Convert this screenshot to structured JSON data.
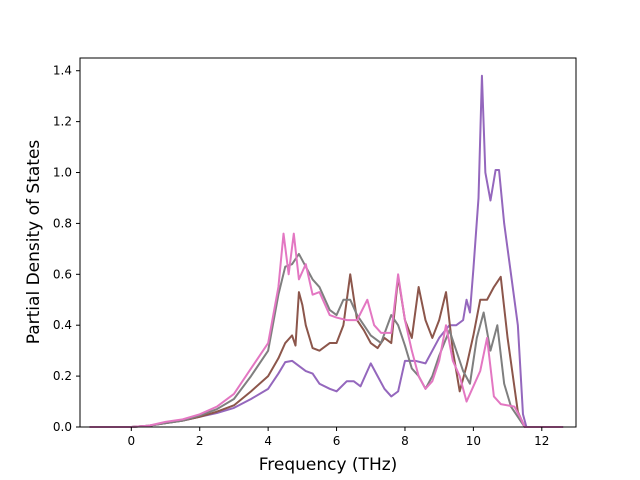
{
  "chart_data": {
    "type": "line",
    "title": "",
    "xlabel": "Frequency (THz)",
    "ylabel": "Partial Density of States",
    "xlim": [
      -1.5,
      13.0
    ],
    "ylim": [
      0.0,
      1.45
    ],
    "xticks": [
      0,
      2,
      4,
      6,
      8,
      10,
      12
    ],
    "yticks": [
      0.0,
      0.2,
      0.4,
      0.6,
      0.8,
      1.0,
      1.2,
      1.4
    ],
    "xtick_labels": [
      "0",
      "2",
      "4",
      "6",
      "8",
      "10",
      "12"
    ],
    "ytick_labels": [
      "0.0",
      "0.2",
      "0.4",
      "0.6",
      "0.8",
      "1.0",
      "1.2",
      "1.4"
    ],
    "grid": false,
    "legend": "none",
    "series": [
      {
        "color": "#9467bd",
        "points": [
          [
            -1.2,
            0
          ],
          [
            0,
            0
          ],
          [
            0.5,
            0.005
          ],
          [
            1,
            0.015
          ],
          [
            1.5,
            0.025
          ],
          [
            2,
            0.04
          ],
          [
            2.5,
            0.055
          ],
          [
            3,
            0.075
          ],
          [
            3.5,
            0.11
          ],
          [
            4,
            0.15
          ],
          [
            4.3,
            0.21
          ],
          [
            4.5,
            0.255
          ],
          [
            4.7,
            0.26
          ],
          [
            4.9,
            0.24
          ],
          [
            5.1,
            0.22
          ],
          [
            5.3,
            0.21
          ],
          [
            5.5,
            0.17
          ],
          [
            5.8,
            0.15
          ],
          [
            6.0,
            0.14
          ],
          [
            6.3,
            0.18
          ],
          [
            6.5,
            0.18
          ],
          [
            6.7,
            0.16
          ],
          [
            7.0,
            0.25
          ],
          [
            7.2,
            0.2
          ],
          [
            7.4,
            0.15
          ],
          [
            7.6,
            0.12
          ],
          [
            7.8,
            0.14
          ],
          [
            8.0,
            0.26
          ],
          [
            8.3,
            0.26
          ],
          [
            8.6,
            0.25
          ],
          [
            9.0,
            0.35
          ],
          [
            9.3,
            0.4
          ],
          [
            9.5,
            0.4
          ],
          [
            9.7,
            0.42
          ],
          [
            9.8,
            0.5
          ],
          [
            9.9,
            0.45
          ],
          [
            10.0,
            0.62
          ],
          [
            10.15,
            0.9
          ],
          [
            10.25,
            1.38
          ],
          [
            10.35,
            1.0
          ],
          [
            10.5,
            0.89
          ],
          [
            10.65,
            1.01
          ],
          [
            10.75,
            1.01
          ],
          [
            10.9,
            0.8
          ],
          [
            11.1,
            0.6
          ],
          [
            11.3,
            0.4
          ],
          [
            11.45,
            0.05
          ],
          [
            11.55,
            0
          ],
          [
            12.6,
            0
          ]
        ]
      },
      {
        "color": "#8c564b",
        "points": [
          [
            -1.2,
            0
          ],
          [
            0,
            0
          ],
          [
            0.5,
            0.005
          ],
          [
            1,
            0.015
          ],
          [
            1.5,
            0.025
          ],
          [
            2,
            0.04
          ],
          [
            2.5,
            0.06
          ],
          [
            3,
            0.085
          ],
          [
            3.5,
            0.14
          ],
          [
            4,
            0.2
          ],
          [
            4.3,
            0.27
          ],
          [
            4.5,
            0.33
          ],
          [
            4.7,
            0.36
          ],
          [
            4.8,
            0.32
          ],
          [
            4.9,
            0.53
          ],
          [
            5.0,
            0.48
          ],
          [
            5.1,
            0.4
          ],
          [
            5.3,
            0.31
          ],
          [
            5.5,
            0.3
          ],
          [
            5.8,
            0.33
          ],
          [
            6.0,
            0.33
          ],
          [
            6.2,
            0.4
          ],
          [
            6.4,
            0.6
          ],
          [
            6.6,
            0.42
          ],
          [
            6.8,
            0.38
          ],
          [
            7.0,
            0.33
          ],
          [
            7.2,
            0.31
          ],
          [
            7.4,
            0.35
          ],
          [
            7.6,
            0.33
          ],
          [
            7.8,
            0.59
          ],
          [
            8.0,
            0.42
          ],
          [
            8.2,
            0.35
          ],
          [
            8.4,
            0.55
          ],
          [
            8.6,
            0.42
          ],
          [
            8.8,
            0.35
          ],
          [
            9.0,
            0.42
          ],
          [
            9.2,
            0.53
          ],
          [
            9.4,
            0.3
          ],
          [
            9.6,
            0.14
          ],
          [
            9.8,
            0.24
          ],
          [
            10.0,
            0.36
          ],
          [
            10.2,
            0.5
          ],
          [
            10.4,
            0.5
          ],
          [
            10.6,
            0.55
          ],
          [
            10.8,
            0.59
          ],
          [
            11.0,
            0.35
          ],
          [
            11.3,
            0.06
          ],
          [
            11.5,
            0
          ],
          [
            12.6,
            0
          ]
        ]
      },
      {
        "color": "#7f7f7f",
        "points": [
          [
            -1.2,
            0
          ],
          [
            0,
            0
          ],
          [
            0.5,
            0.005
          ],
          [
            1,
            0.015
          ],
          [
            1.5,
            0.025
          ],
          [
            2,
            0.045
          ],
          [
            2.5,
            0.07
          ],
          [
            3,
            0.11
          ],
          [
            3.5,
            0.2
          ],
          [
            4,
            0.3
          ],
          [
            4.3,
            0.52
          ],
          [
            4.5,
            0.63
          ],
          [
            4.7,
            0.64
          ],
          [
            4.9,
            0.68
          ],
          [
            5.1,
            0.63
          ],
          [
            5.3,
            0.58
          ],
          [
            5.5,
            0.55
          ],
          [
            5.8,
            0.46
          ],
          [
            6.0,
            0.44
          ],
          [
            6.2,
            0.5
          ],
          [
            6.4,
            0.5
          ],
          [
            6.6,
            0.44
          ],
          [
            6.8,
            0.4
          ],
          [
            7.0,
            0.36
          ],
          [
            7.3,
            0.33
          ],
          [
            7.6,
            0.44
          ],
          [
            7.8,
            0.4
          ],
          [
            8.0,
            0.32
          ],
          [
            8.2,
            0.23
          ],
          [
            8.4,
            0.2
          ],
          [
            8.6,
            0.15
          ],
          [
            8.8,
            0.2
          ],
          [
            9.0,
            0.28
          ],
          [
            9.3,
            0.38
          ],
          [
            9.5,
            0.3
          ],
          [
            9.7,
            0.22
          ],
          [
            9.9,
            0.17
          ],
          [
            10.1,
            0.35
          ],
          [
            10.3,
            0.45
          ],
          [
            10.5,
            0.3
          ],
          [
            10.7,
            0.4
          ],
          [
            10.9,
            0.17
          ],
          [
            11.1,
            0.08
          ],
          [
            11.4,
            0.02
          ],
          [
            11.5,
            0
          ],
          [
            12.6,
            0
          ]
        ]
      },
      {
        "color": "#e377c2",
        "points": [
          [
            -1.2,
            0
          ],
          [
            0,
            0
          ],
          [
            0.5,
            0.005
          ],
          [
            1,
            0.02
          ],
          [
            1.5,
            0.03
          ],
          [
            2,
            0.05
          ],
          [
            2.5,
            0.08
          ],
          [
            3,
            0.13
          ],
          [
            3.5,
            0.23
          ],
          [
            4,
            0.33
          ],
          [
            4.3,
            0.55
          ],
          [
            4.45,
            0.76
          ],
          [
            4.6,
            0.6
          ],
          [
            4.75,
            0.76
          ],
          [
            4.9,
            0.58
          ],
          [
            5.1,
            0.64
          ],
          [
            5.3,
            0.52
          ],
          [
            5.5,
            0.53
          ],
          [
            5.8,
            0.44
          ],
          [
            6.0,
            0.43
          ],
          [
            6.3,
            0.42
          ],
          [
            6.6,
            0.42
          ],
          [
            6.9,
            0.5
          ],
          [
            7.1,
            0.4
          ],
          [
            7.3,
            0.37
          ],
          [
            7.6,
            0.37
          ],
          [
            7.8,
            0.6
          ],
          [
            8.0,
            0.42
          ],
          [
            8.2,
            0.3
          ],
          [
            8.4,
            0.2
          ],
          [
            8.6,
            0.15
          ],
          [
            8.8,
            0.18
          ],
          [
            9.0,
            0.26
          ],
          [
            9.2,
            0.4
          ],
          [
            9.4,
            0.26
          ],
          [
            9.6,
            0.2
          ],
          [
            9.8,
            0.1
          ],
          [
            10.0,
            0.16
          ],
          [
            10.2,
            0.22
          ],
          [
            10.4,
            0.35
          ],
          [
            10.6,
            0.12
          ],
          [
            10.8,
            0.09
          ],
          [
            11.2,
            0.08
          ],
          [
            11.4,
            0.03
          ],
          [
            11.5,
            0
          ],
          [
            12.6,
            0
          ]
        ]
      }
    ]
  }
}
